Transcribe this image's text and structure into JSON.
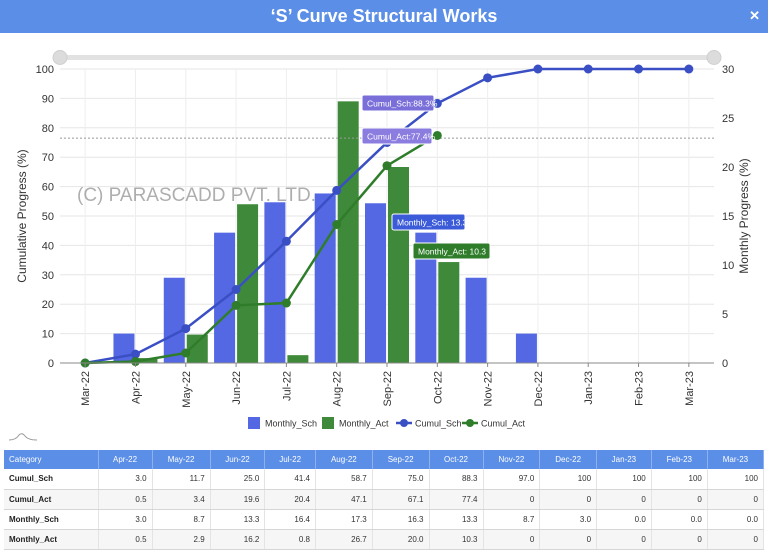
{
  "window": {
    "title": "‘S’ Curve Structural Works"
  },
  "chart_data": {
    "type": "bar",
    "categories": [
      "Mar-22",
      "Apr-22",
      "May-22",
      "Jun-22",
      "Jul-22",
      "Aug-22",
      "Sep-22",
      "Oct-22",
      "Nov-22",
      "Dec-22",
      "Jan-23",
      "Feb-23",
      "Mar-23"
    ],
    "series": [
      {
        "name": "Monthly_Sch",
        "type": "bar",
        "axis": "right",
        "color": "#5468e3",
        "values": [
          0,
          3.0,
          8.7,
          13.3,
          16.4,
          17.3,
          16.3,
          13.3,
          8.7,
          3.0,
          0,
          0,
          0
        ]
      },
      {
        "name": "Monthly_Act",
        "type": "bar",
        "axis": "right",
        "color": "#3f8a3a",
        "values": [
          0,
          0.5,
          2.9,
          16.2,
          0.8,
          26.7,
          20.0,
          10.3,
          0,
          0,
          0,
          0,
          0
        ]
      },
      {
        "name": "Cumul_Sch",
        "type": "line",
        "axis": "left",
        "color": "#3a4fc4",
        "values": [
          0,
          3.0,
          11.7,
          25.0,
          41.4,
          58.7,
          75.0,
          88.3,
          97.0,
          100,
          100,
          100,
          100
        ]
      },
      {
        "name": "Cumul_Act",
        "type": "line",
        "axis": "left",
        "color": "#2f7d2b",
        "values": [
          0,
          0.5,
          3.4,
          19.6,
          20.4,
          47.1,
          67.1,
          77.4,
          null,
          null,
          null,
          null,
          null
        ]
      }
    ],
    "ylabel": "Cumulative Progress (%)",
    "y2label": "Monthly Progress (%)",
    "ylim": [
      0,
      100
    ],
    "y2lim": [
      0,
      30
    ],
    "yticks": [
      "0",
      "10",
      "20",
      "30",
      "40",
      "50",
      "60",
      "70",
      "80",
      "90",
      "100"
    ],
    "y2ticks": [
      "0",
      "5",
      "10",
      "15",
      "20",
      "25",
      "30"
    ],
    "grid": true,
    "legend": "bottom",
    "tooltips": [
      "Cumul_Sch:88.3%",
      "Cumul_Act:77.4%",
      "Monthly_Sch: 13.3",
      "Monthly_Act: 10.3"
    ],
    "watermark": "(C) PARASCADD PVT. LTD."
  },
  "table": {
    "headers": [
      "Category",
      "Apr-22",
      "May-22",
      "Jun-22",
      "Jul-22",
      "Aug-22",
      "Sep-22",
      "Oct-22",
      "Nov-22",
      "Dec-22",
      "Jan-23",
      "Feb-23",
      "Mar-23"
    ],
    "rows": [
      [
        "Cumul_Sch",
        "3.0",
        "11.7",
        "25.0",
        "41.4",
        "58.7",
        "75.0",
        "88.3",
        "97.0",
        "100",
        "100",
        "100",
        "100"
      ],
      [
        "Cumul_Act",
        "0.5",
        "3.4",
        "19.6",
        "20.4",
        "47.1",
        "67.1",
        "77.4",
        "0",
        "0",
        "0",
        "0",
        "0"
      ],
      [
        "Monthly_Sch",
        "3.0",
        "8.7",
        "13.3",
        "16.4",
        "17.3",
        "16.3",
        "13.3",
        "8.7",
        "3.0",
        "0.0",
        "0.0",
        "0.0"
      ],
      [
        "Monthly_Act",
        "0.5",
        "2.9",
        "16.2",
        "0.8",
        "26.7",
        "20.0",
        "10.3",
        "0",
        "0",
        "0",
        "0",
        "0"
      ]
    ]
  }
}
